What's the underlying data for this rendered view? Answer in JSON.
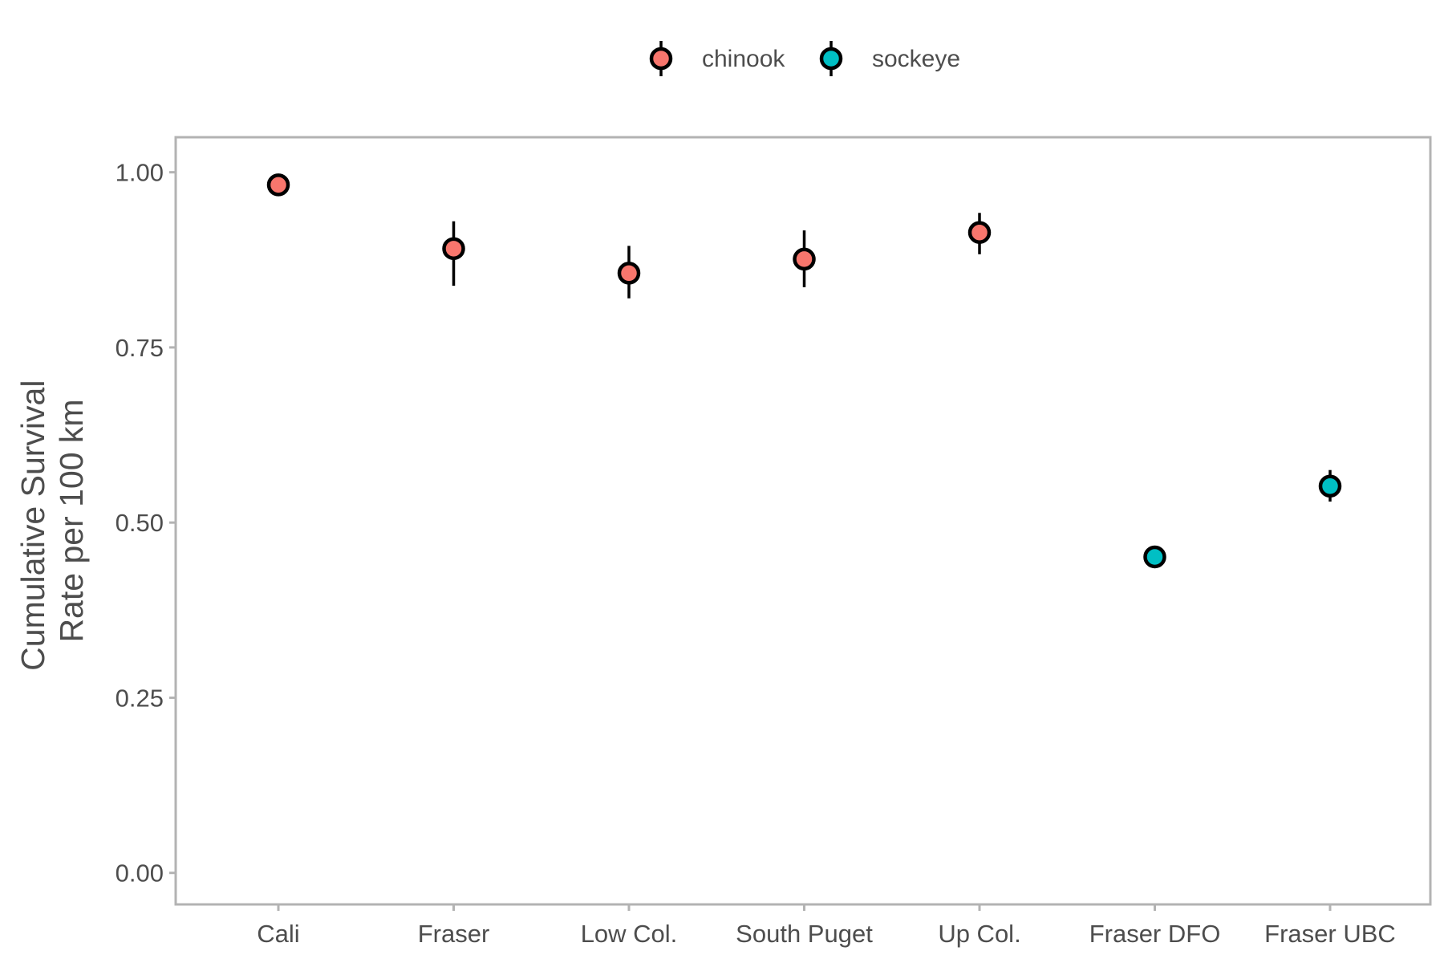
{
  "chart_data": {
    "type": "scatter",
    "title": "",
    "xlabel": "",
    "ylabel_lines": [
      "Cumulative Survival",
      "Rate per 100 km"
    ],
    "categories": [
      "Cali",
      "Fraser",
      "Low Col.",
      "South Puget",
      "Up Col.",
      "Fraser DFO",
      "Fraser UBC"
    ],
    "ylim": [
      -0.045,
      1.05
    ],
    "yticks": [
      0.0,
      0.25,
      0.5,
      0.75,
      1.0
    ],
    "ytick_labels": [
      "0.00",
      "0.25",
      "0.50",
      "0.75",
      "1.00"
    ],
    "grid": false,
    "legend_position": "top",
    "series": [
      {
        "name": "chinook",
        "color": "#F8766D",
        "points": [
          {
            "x": "Cali",
            "y": 0.982,
            "lower": 0.982,
            "upper": 0.982
          },
          {
            "x": "Fraser",
            "y": 0.891,
            "lower": 0.838,
            "upper": 0.93
          },
          {
            "x": "Low Col.",
            "y": 0.856,
            "lower": 0.82,
            "upper": 0.895
          },
          {
            "x": "South Puget",
            "y": 0.876,
            "lower": 0.836,
            "upper": 0.917
          },
          {
            "x": "Up Col.",
            "y": 0.914,
            "lower": 0.883,
            "upper": 0.942
          }
        ]
      },
      {
        "name": "sockeye",
        "color": "#00BFC4",
        "points": [
          {
            "x": "Fraser DFO",
            "y": 0.451,
            "lower": 0.451,
            "upper": 0.451
          },
          {
            "x": "Fraser UBC",
            "y": 0.552,
            "lower": 0.53,
            "upper": 0.575
          }
        ]
      }
    ]
  }
}
